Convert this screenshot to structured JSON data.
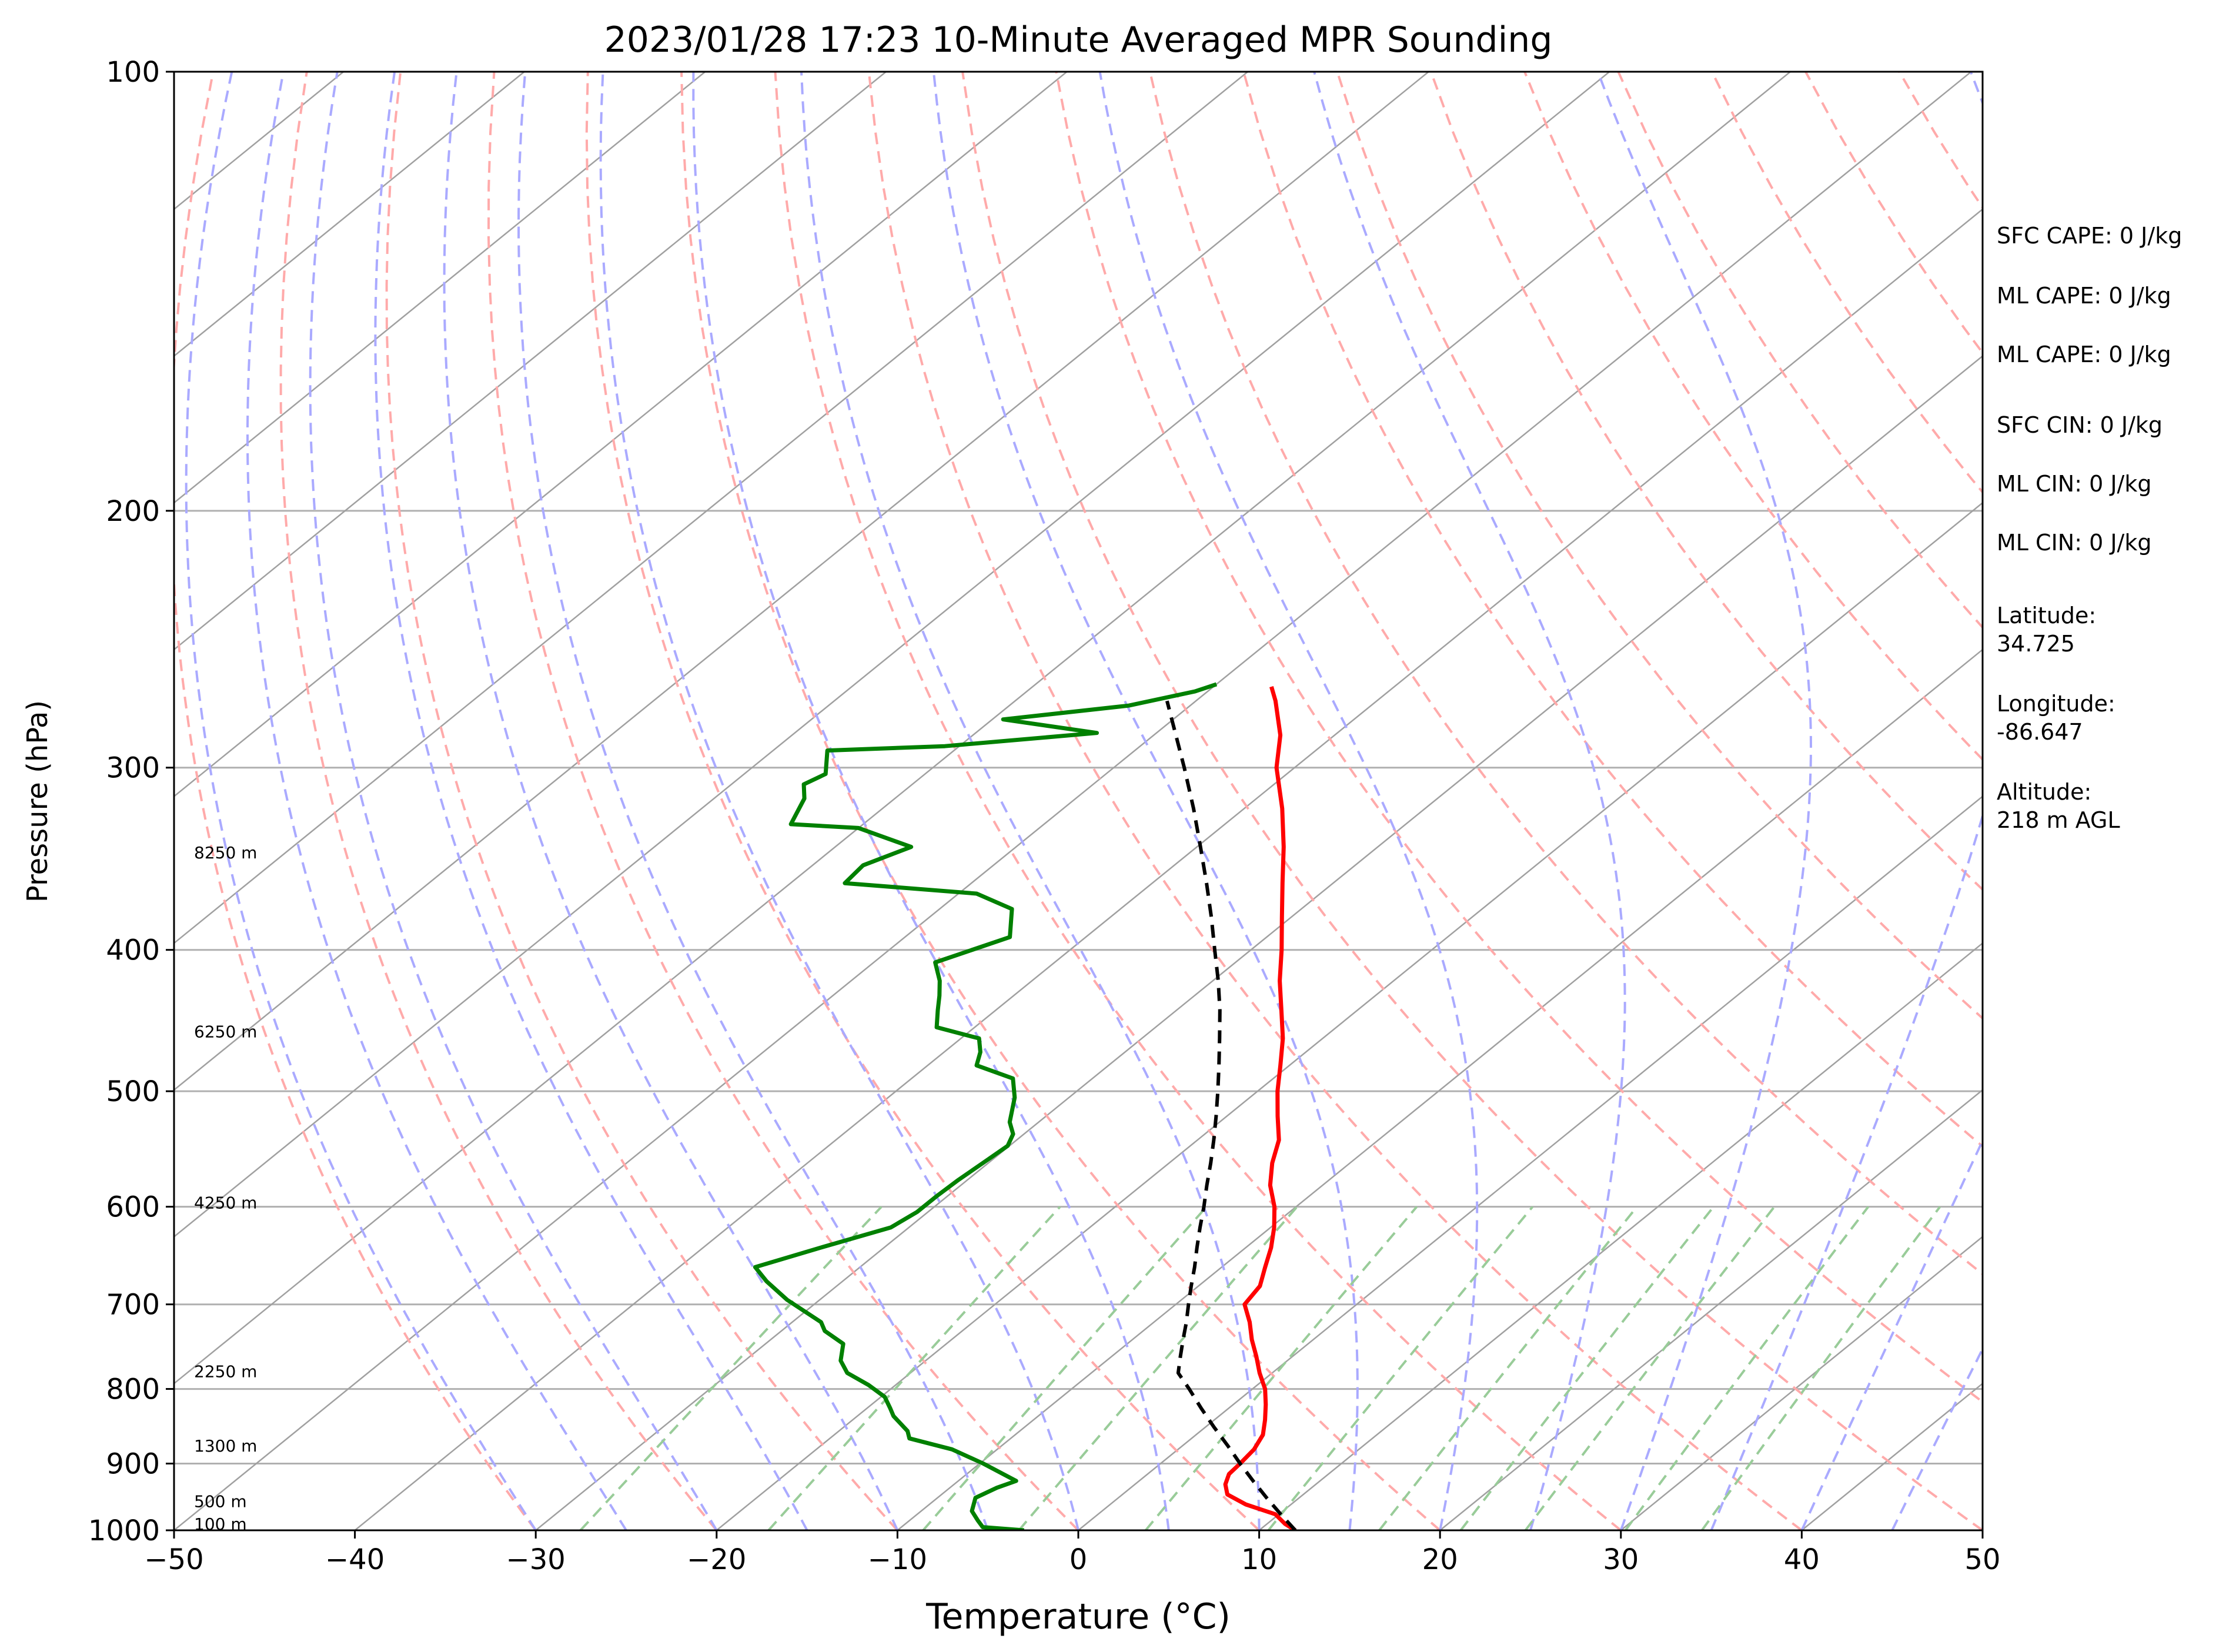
{
  "chart_data": {
    "type": "line",
    "title": "2023/01/28 17:23 10-Minute Averaged MPR Sounding",
    "xlabel": "Temperature (°C)",
    "ylabel": "Pressure (hPa)",
    "xlim": [
      -50,
      50
    ],
    "ylim": [
      1000,
      100
    ],
    "y_scale": "log",
    "skew": true,
    "grid": true,
    "x_ticks": [
      "−50",
      "−40",
      "−30",
      "−20",
      "−10",
      "0",
      "10",
      "20",
      "30",
      "40",
      "50"
    ],
    "y_ticks": [
      "100",
      "200",
      "300",
      "400",
      "500",
      "600",
      "700",
      "800",
      "900",
      "1000"
    ],
    "height_labels": [
      {
        "text": "8250 m",
        "p": 343
      },
      {
        "text": "6250 m",
        "p": 455
      },
      {
        "text": "4250 m",
        "p": 596
      },
      {
        "text": "2250 m",
        "p": 778
      },
      {
        "text": "1300 m",
        "p": 875
      },
      {
        "text": "500 m",
        "p": 955
      },
      {
        "text": "100 m",
        "p": 990
      }
    ],
    "series": [
      {
        "name": "",
        "color": "#ff0000",
        "points": [
          [
            1000,
            12.0
          ],
          [
            990,
            11.0
          ],
          [
            975,
            9.8
          ],
          [
            960,
            7.5
          ],
          [
            945,
            5.8
          ],
          [
            930,
            5.0
          ],
          [
            915,
            4.5
          ],
          [
            900,
            4.4
          ],
          [
            880,
            4.2
          ],
          [
            860,
            3.7
          ],
          [
            840,
            2.8
          ],
          [
            820,
            1.8
          ],
          [
            800,
            0.7
          ],
          [
            780,
            -0.7
          ],
          [
            760,
            -2.0
          ],
          [
            740,
            -3.4
          ],
          [
            720,
            -4.7
          ],
          [
            700,
            -6.2
          ],
          [
            680,
            -6.6
          ],
          [
            660,
            -7.6
          ],
          [
            640,
            -8.6
          ],
          [
            620,
            -9.8
          ],
          [
            600,
            -11.2
          ],
          [
            580,
            -12.9
          ],
          [
            560,
            -14.3
          ],
          [
            540,
            -15.5
          ],
          [
            520,
            -17.2
          ],
          [
            500,
            -18.9
          ],
          [
            480,
            -20.5
          ],
          [
            460,
            -22.2
          ],
          [
            440,
            -24.2
          ],
          [
            420,
            -26.3
          ],
          [
            400,
            -28.3
          ],
          [
            380,
            -30.5
          ],
          [
            360,
            -32.8
          ],
          [
            340,
            -35.2
          ],
          [
            320,
            -37.9
          ],
          [
            300,
            -41.0
          ],
          [
            285,
            -43.0
          ],
          [
            270,
            -45.6
          ],
          [
            264,
            -46.8
          ]
        ]
      },
      {
        "name": "",
        "color": "#008000",
        "points": [
          [
            1000,
            -3.0
          ],
          [
            995,
            -5.5
          ],
          [
            985,
            -6.2
          ],
          [
            970,
            -7.2
          ],
          [
            950,
            -7.9
          ],
          [
            935,
            -7.4
          ],
          [
            925,
            -6.8
          ],
          [
            900,
            -9.8
          ],
          [
            880,
            -12.5
          ],
          [
            865,
            -15.6
          ],
          [
            855,
            -16.2
          ],
          [
            835,
            -18.0
          ],
          [
            825,
            -18.7
          ],
          [
            810,
            -19.8
          ],
          [
            795,
            -21.5
          ],
          [
            780,
            -23.5
          ],
          [
            765,
            -24.7
          ],
          [
            745,
            -25.7
          ],
          [
            730,
            -27.6
          ],
          [
            720,
            -28.4
          ],
          [
            695,
            -31.8
          ],
          [
            675,
            -34.2
          ],
          [
            660,
            -35.8
          ],
          [
            640,
            -33.5
          ],
          [
            620,
            -31.0
          ],
          [
            605,
            -30.6
          ],
          [
            590,
            -30.6
          ],
          [
            575,
            -30.5
          ],
          [
            560,
            -30.3
          ],
          [
            545,
            -30.1
          ],
          [
            535,
            -30.6
          ],
          [
            525,
            -31.6
          ],
          [
            505,
            -33.0
          ],
          [
            490,
            -34.4
          ],
          [
            480,
            -37.3
          ],
          [
            470,
            -38.0
          ],
          [
            460,
            -39.0
          ],
          [
            452,
            -42.1
          ],
          [
            440,
            -43.2
          ],
          [
            430,
            -44.1
          ],
          [
            420,
            -45.1
          ],
          [
            408,
            -46.6
          ],
          [
            392,
            -44.2
          ],
          [
            375,
            -46.0
          ],
          [
            366,
            -49.0
          ],
          [
            360,
            -57.0
          ],
          [
            350,
            -57.2
          ],
          [
            340,
            -55.8
          ],
          [
            330,
            -60.0
          ],
          [
            328,
            -64.0
          ],
          [
            315,
            -65.0
          ],
          [
            308,
            -66.0
          ],
          [
            303,
            -65.5
          ],
          [
            292,
            -67.0
          ],
          [
            290,
            -60.8
          ],
          [
            284,
            -53.3
          ],
          [
            278,
            -59.4
          ],
          [
            272,
            -53.4
          ],
          [
            266,
            -50.7
          ],
          [
            263,
            -50.0
          ]
        ]
      },
      {
        "name": "",
        "color": "#000000",
        "dashed": true,
        "points": [
          [
            1000,
            12.0
          ],
          [
            975,
            10.1
          ],
          [
            950,
            8.2
          ],
          [
            925,
            6.3
          ],
          [
            900,
            4.4
          ],
          [
            875,
            2.5
          ],
          [
            850,
            0.5
          ],
          [
            825,
            -1.5
          ],
          [
            800,
            -3.5
          ],
          [
            780,
            -5.2
          ],
          [
            760,
            -6.2
          ],
          [
            740,
            -7.2
          ],
          [
            720,
            -8.2
          ],
          [
            700,
            -9.3
          ],
          [
            680,
            -10.4
          ],
          [
            660,
            -11.5
          ],
          [
            640,
            -12.7
          ],
          [
            620,
            -13.9
          ],
          [
            600,
            -15.1
          ],
          [
            580,
            -16.4
          ],
          [
            560,
            -17.7
          ],
          [
            540,
            -19.1
          ],
          [
            520,
            -20.6
          ],
          [
            500,
            -22.2
          ],
          [
            480,
            -23.9
          ],
          [
            460,
            -25.7
          ],
          [
            440,
            -27.6
          ],
          [
            420,
            -29.7
          ],
          [
            400,
            -32.0
          ],
          [
            380,
            -34.4
          ],
          [
            360,
            -37.0
          ],
          [
            340,
            -39.8
          ],
          [
            320,
            -42.8
          ],
          [
            300,
            -46.1
          ],
          [
            280,
            -49.7
          ],
          [
            270,
            -51.6
          ]
        ]
      }
    ]
  },
  "info_panel": {
    "sfc_cape": "SFC CAPE: 0 J/kg",
    "ml_cape_1": "ML CAPE: 0 J/kg",
    "ml_cape_2": "ML CAPE: 0 J/kg",
    "sfc_cin": "SFC CIN: 0 J/kg",
    "ml_cin_1": "ML CIN: 0 J/kg",
    "ml_cin_2": "ML CIN: 0 J/kg",
    "latitude_label": "Latitude:",
    "latitude_value": "34.725",
    "longitude_label": "Longitude:",
    "longitude_value": "-86.647",
    "altitude_label": "Altitude:",
    "altitude_value": "218 m AGL"
  },
  "colors": {
    "isobar": "#b0b0b0",
    "isotherm": "#a0a0a0",
    "dry_adiabat": "#ffaaaa",
    "moist_adiabat": "#aaaaff",
    "mixing_ratio": "#99cc99"
  }
}
